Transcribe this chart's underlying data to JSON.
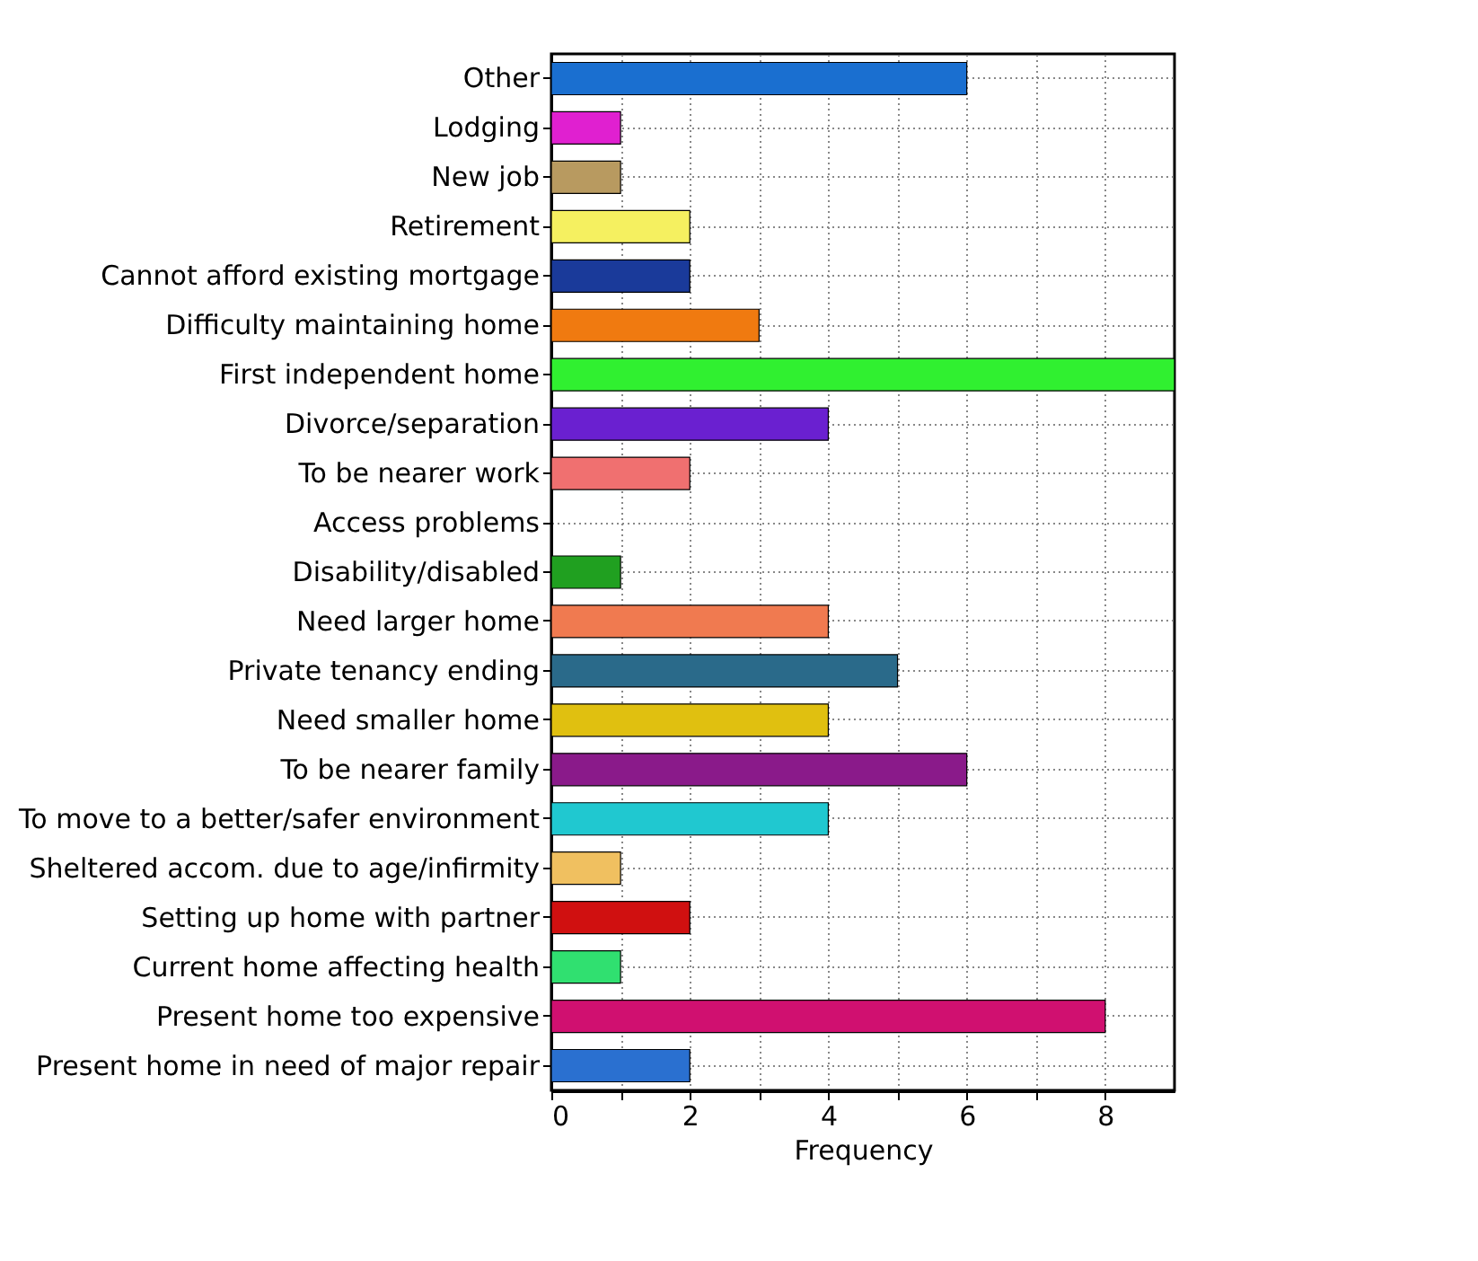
{
  "chart_data": {
    "type": "bar",
    "orientation": "horizontal",
    "xlabel": "Frequency",
    "categories": [
      "Other",
      "Lodging",
      "New job",
      "Retirement",
      "Cannot afford existing mortgage",
      "Difficulty maintaining home",
      "First independent home",
      "Divorce/separation",
      "To be nearer work",
      "Access problems",
      "Disability/disabled",
      "Need larger home",
      "Private tenancy ending",
      "Need smaller home",
      "To be nearer family",
      "To move to a better/safer environment",
      "Sheltered accom. due to age/infirmity",
      "Setting up home with partner",
      "Current home affecting health",
      "Present home too expensive",
      "Present home in need of major repair"
    ],
    "values": [
      6,
      1,
      1,
      2,
      2,
      3,
      9,
      4,
      2,
      0,
      1,
      4,
      5,
      4,
      6,
      4,
      1,
      2,
      1,
      8,
      2
    ],
    "colors": [
      "#1a6fd0",
      "#e020d0",
      "#b89a60",
      "#f5f060",
      "#1a3a9a",
      "#f07a10",
      "#30f030",
      "#6a20d0",
      "#f07070",
      null,
      "#20a020",
      "#f07a50",
      "#2a6a8a",
      "#e0c010",
      "#8a1a8a",
      "#20c8d0",
      "#f0c060",
      "#d01010",
      "#30e070",
      "#d01070",
      "#2a70d0"
    ],
    "xlim": [
      0,
      9
    ],
    "xticks": [
      0,
      {
        "value": 1,
        "label": null
      },
      2,
      {
        "value": 3,
        "label": null
      },
      4,
      {
        "value": 5,
        "label": null
      },
      6,
      {
        "value": 7,
        "label": null
      },
      8
    ],
    "grid": true
  }
}
